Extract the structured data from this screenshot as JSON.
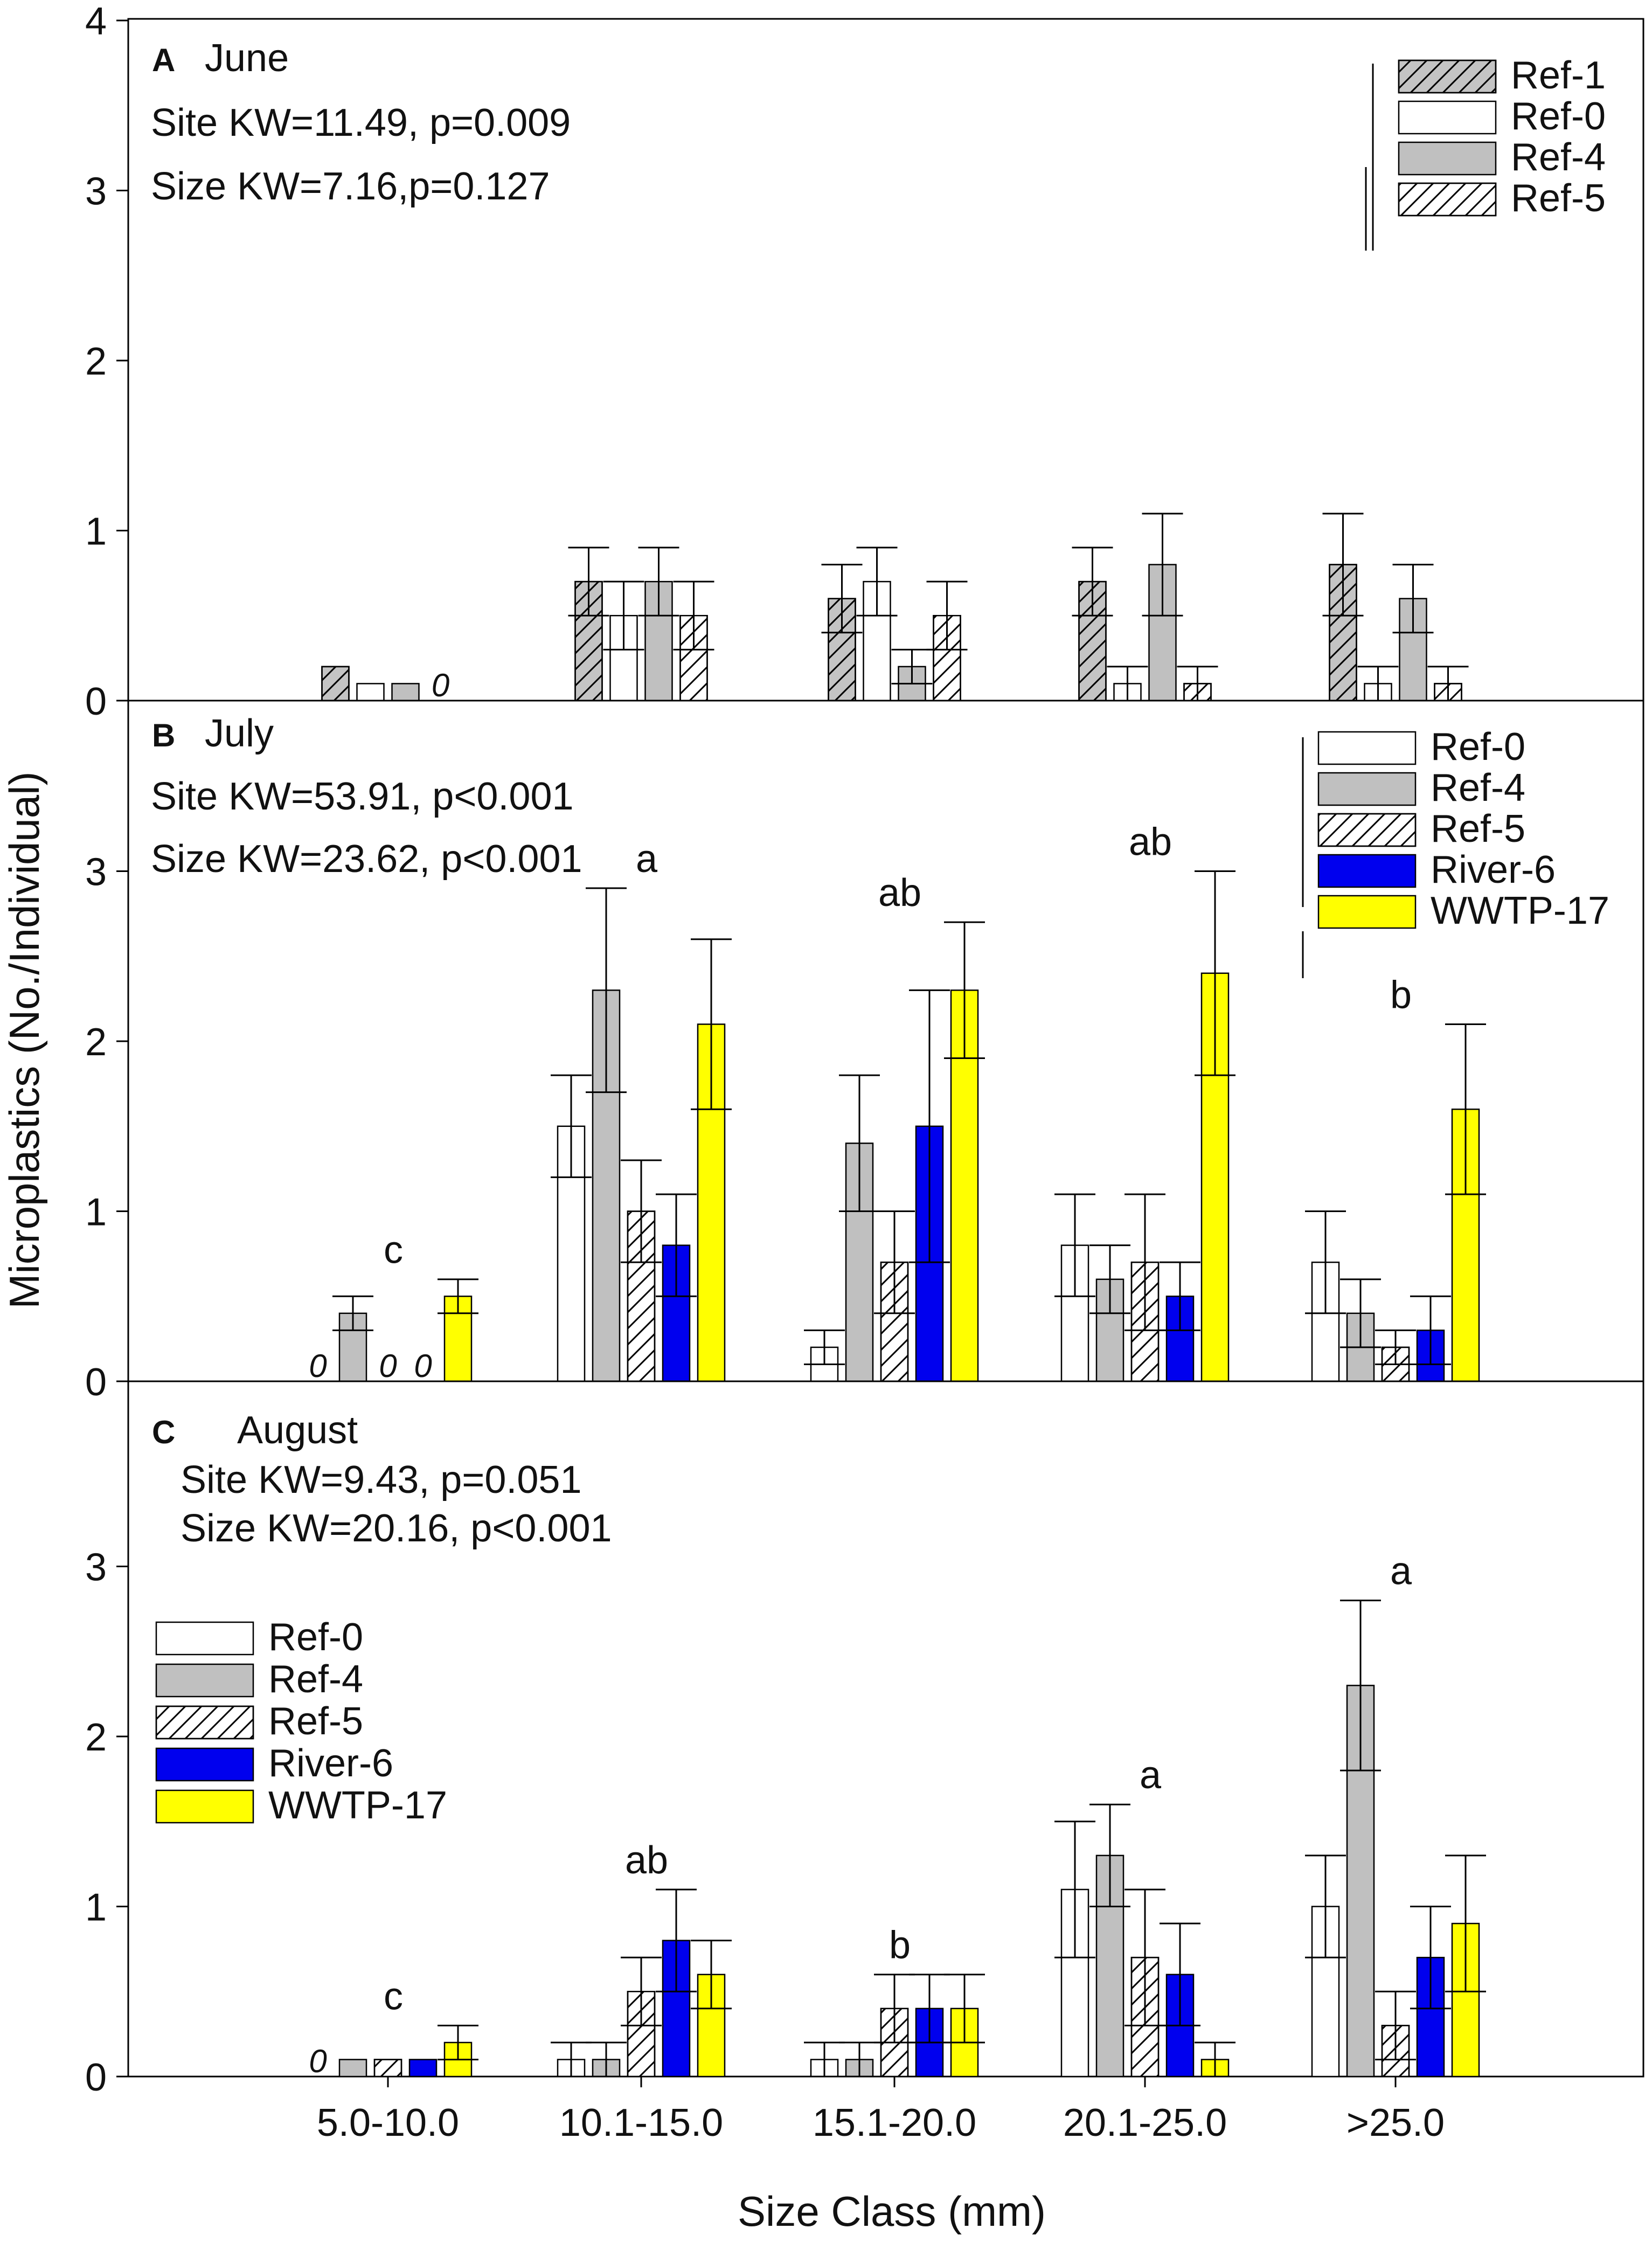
{
  "chart_data": {
    "type": "bar",
    "ylabel": "Microplastics (No./Individual)",
    "xlabel": "Size Class (mm)",
    "categories": [
      "5.0-10.0",
      "10.1-15.0",
      "15.1-20.0",
      "20.1-25.0",
      ">25.0"
    ],
    "series_styles": {
      "Ref-1": {
        "fill": "#c4c4c4",
        "hatch": true
      },
      "Ref-0": {
        "fill": "#ffffff",
        "hatch": false
      },
      "Ref-4": {
        "fill": "#c0c0c0",
        "hatch": false
      },
      "Ref-5": {
        "fill": "#ffffff",
        "hatch": true
      },
      "River-6": {
        "fill": "#0000ee",
        "hatch": false
      },
      "WWTP-17": {
        "fill": "#ffff00",
        "hatch": false
      }
    },
    "panels": [
      {
        "letter": "A",
        "title": "June",
        "stats": [
          "Site KW=11.49, p=0.009",
          "Size KW=7.16,p=0.127"
        ],
        "ylim": [
          0,
          4
        ],
        "yticks": [
          "0",
          "1",
          "2",
          "3",
          "4"
        ],
        "legend": [
          "Ref-1",
          "Ref-0",
          "Ref-4",
          "Ref-5"
        ],
        "legend_position": "top-right",
        "series": [
          {
            "name": "Ref-1",
            "values": [
              0.2,
              0.7,
              0.6,
              0.7,
              0.8
            ],
            "errors": [
              null,
              0.2,
              0.2,
              0.2,
              0.3
            ]
          },
          {
            "name": "Ref-0",
            "values": [
              0.1,
              0.5,
              0.7,
              0.1,
              0.1
            ],
            "errors": [
              null,
              0.2,
              0.2,
              0.1,
              0.1
            ]
          },
          {
            "name": "Ref-4",
            "values": [
              0.1,
              0.7,
              0.2,
              0.8,
              0.6
            ],
            "errors": [
              null,
              0.2,
              0.1,
              0.3,
              0.2
            ]
          },
          {
            "name": "Ref-5",
            "values": [
              0,
              0.5,
              0.5,
              0.1,
              0.1
            ],
            "errors": [
              null,
              0.2,
              0.2,
              0.1,
              0.1
            ]
          }
        ],
        "zero_labels": [
          {
            "category": 0,
            "series": "Ref-5",
            "text": "0"
          }
        ],
        "group_letters": [
          "",
          "",
          "",
          "",
          ""
        ]
      },
      {
        "letter": "B",
        "title": "July",
        "stats": [
          "Site KW=53.91, p<0.001",
          "Size KW=23.62, p<0.001"
        ],
        "ylim": [
          0,
          4
        ],
        "yticks": [
          "0",
          "1",
          "2",
          "3"
        ],
        "legend": [
          "Ref-0",
          "Ref-4",
          "Ref-5",
          "River-6",
          "WWTP-17"
        ],
        "legend_position": "top-right",
        "series": [
          {
            "name": "Ref-0",
            "values": [
              0,
              1.5,
              0.2,
              0.8,
              0.7
            ],
            "errors": [
              null,
              0.3,
              0.1,
              0.3,
              0.3
            ]
          },
          {
            "name": "Ref-4",
            "values": [
              0.4,
              2.3,
              1.4,
              0.6,
              0.4
            ],
            "errors": [
              0.1,
              0.6,
              0.4,
              0.2,
              0.2
            ]
          },
          {
            "name": "Ref-5",
            "values": [
              0,
              1.0,
              0.7,
              0.7,
              0.2
            ],
            "errors": [
              null,
              0.3,
              0.3,
              0.4,
              0.1
            ]
          },
          {
            "name": "River-6",
            "values": [
              0,
              0.8,
              1.5,
              0.5,
              0.3
            ],
            "errors": [
              null,
              0.3,
              0.8,
              0.2,
              0.2
            ]
          },
          {
            "name": "WWTP-17",
            "values": [
              0.5,
              2.1,
              2.3,
              2.4,
              1.6
            ],
            "errors": [
              0.1,
              0.5,
              0.4,
              0.6,
              0.5
            ]
          }
        ],
        "zero_labels": [
          {
            "category": 0,
            "series": "Ref-0",
            "text": "0"
          },
          {
            "category": 0,
            "series": "Ref-5",
            "text": "0"
          },
          {
            "category": 0,
            "series": "River-6",
            "text": "0"
          }
        ],
        "group_letters": [
          "c",
          "a",
          "ab",
          "ab",
          "b"
        ]
      },
      {
        "letter": "C",
        "title": "August",
        "stats": [
          "Site KW=9.43, p=0.051",
          "Size KW=20.16, p<0.001"
        ],
        "ylim": [
          0,
          4
        ],
        "yticks": [
          "0",
          "1",
          "2",
          "3"
        ],
        "legend": [
          "Ref-0",
          "Ref-4",
          "Ref-5",
          "River-6",
          "WWTP-17"
        ],
        "legend_position": "mid-left",
        "series": [
          {
            "name": "Ref-0",
            "values": [
              0,
              0.1,
              0.1,
              1.1,
              1.0
            ],
            "errors": [
              null,
              0.1,
              0.1,
              0.4,
              0.3
            ]
          },
          {
            "name": "Ref-4",
            "values": [
              0.1,
              0.1,
              0.1,
              1.3,
              2.3
            ],
            "errors": [
              null,
              0.1,
              0.1,
              0.3,
              0.5
            ]
          },
          {
            "name": "Ref-5",
            "values": [
              0.1,
              0.5,
              0.4,
              0.7,
              0.3
            ],
            "errors": [
              null,
              0.2,
              0.2,
              0.4,
              0.2
            ]
          },
          {
            "name": "River-6",
            "values": [
              0.1,
              0.8,
              0.4,
              0.6,
              0.7
            ],
            "errors": [
              null,
              0.3,
              0.2,
              0.3,
              0.3
            ]
          },
          {
            "name": "WWTP-17",
            "values": [
              0.2,
              0.6,
              0.4,
              0.1,
              0.9
            ],
            "errors": [
              0.1,
              0.2,
              0.2,
              0.1,
              0.4
            ]
          }
        ],
        "zero_labels": [
          {
            "category": 0,
            "series": "Ref-0",
            "text": "0"
          }
        ],
        "group_letters": [
          "c",
          "ab",
          "b",
          "a",
          "a"
        ]
      }
    ]
  }
}
